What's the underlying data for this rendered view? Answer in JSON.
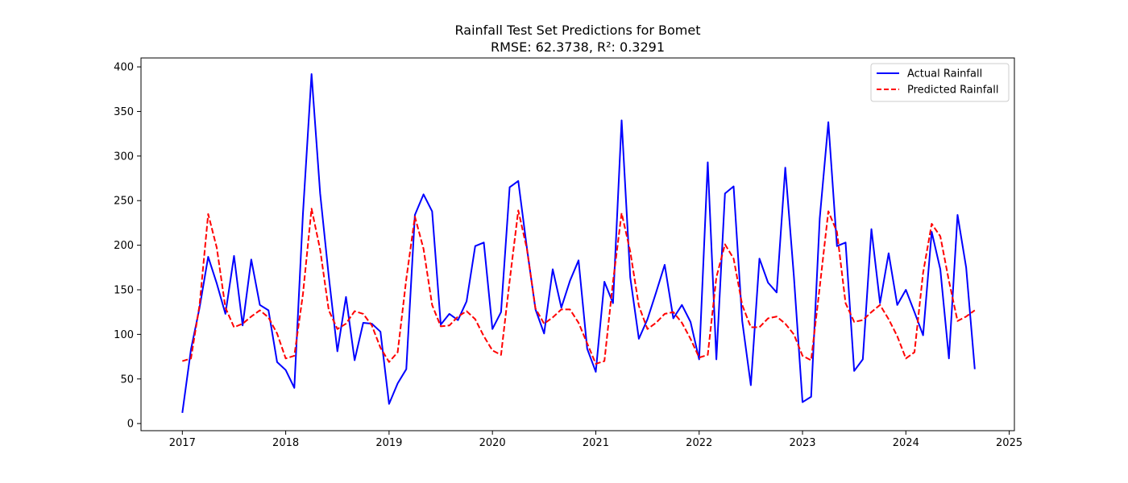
{
  "chart_data": {
    "type": "line",
    "title": "Rainfall Test Set Predictions for Bomet",
    "subtitle": "RMSE: 62.3738, R²: 0.3291",
    "xlabel": "",
    "ylabel": "",
    "x_range": [
      2016.6,
      2025.05
    ],
    "ylim": [
      -8,
      410
    ],
    "x_ticks": [
      2017,
      2018,
      2019,
      2020,
      2021,
      2022,
      2023,
      2024,
      2025
    ],
    "y_ticks": [
      0,
      50,
      100,
      150,
      200,
      250,
      300,
      350,
      400
    ],
    "grid": false,
    "legend_position": "top-right",
    "x": [
      "2017-01",
      "2017-02",
      "2017-03",
      "2017-04",
      "2017-05",
      "2017-06",
      "2017-07",
      "2017-08",
      "2017-09",
      "2017-10",
      "2017-11",
      "2017-12",
      "2018-01",
      "2018-02",
      "2018-03",
      "2018-04",
      "2018-05",
      "2018-06",
      "2018-07",
      "2018-08",
      "2018-09",
      "2018-10",
      "2018-11",
      "2018-12",
      "2019-01",
      "2019-02",
      "2019-03",
      "2019-04",
      "2019-05",
      "2019-06",
      "2019-07",
      "2019-08",
      "2019-09",
      "2019-10",
      "2019-11",
      "2019-12",
      "2020-01",
      "2020-02",
      "2020-03",
      "2020-04",
      "2020-05",
      "2020-06",
      "2020-07",
      "2020-08",
      "2020-09",
      "2020-10",
      "2020-11",
      "2020-12",
      "2021-01",
      "2021-02",
      "2021-03",
      "2021-04",
      "2021-05",
      "2021-06",
      "2021-07",
      "2021-08",
      "2021-09",
      "2021-10",
      "2021-11",
      "2021-12",
      "2022-01",
      "2022-02",
      "2022-03",
      "2022-04",
      "2022-05",
      "2022-06",
      "2022-07",
      "2022-08",
      "2022-09",
      "2022-10",
      "2022-11",
      "2022-12",
      "2023-01",
      "2023-02",
      "2023-03",
      "2023-04",
      "2023-05",
      "2023-06",
      "2023-07",
      "2023-08",
      "2023-09",
      "2023-10",
      "2023-11",
      "2023-12",
      "2024-01",
      "2024-02",
      "2024-03",
      "2024-04",
      "2024-05",
      "2024-06",
      "2024-07",
      "2024-08",
      "2024-09"
    ],
    "series": [
      {
        "name": "Actual Rainfall",
        "color": "#0000ff",
        "style": "solid",
        "values": [
          12,
          83,
          130,
          187,
          157,
          123,
          188,
          110,
          184,
          133,
          127,
          69,
          60,
          40,
          235,
          392,
          258,
          165,
          81,
          142,
          71,
          113,
          112,
          103,
          22,
          45,
          61,
          234,
          257,
          238,
          111,
          123,
          116,
          137,
          199,
          203,
          106,
          125,
          265,
          272,
          197,
          128,
          101,
          173,
          130,
          160,
          183,
          84,
          58,
          159,
          135,
          340,
          164,
          95,
          117,
          147,
          178,
          118,
          133,
          114,
          72,
          293,
          72,
          258,
          266,
          115,
          43,
          185,
          158,
          147,
          287,
          165,
          24,
          30,
          230,
          338,
          199,
          203,
          59,
          72,
          218,
          135,
          191,
          133,
          150,
          125,
          99,
          215,
          173,
          73,
          234,
          175,
          61
        ]
      },
      {
        "name": "Predicted Rainfall",
        "color": "#ff0000",
        "style": "dashed",
        "values": [
          70,
          73,
          133,
          235,
          197,
          130,
          108,
          112,
          120,
          127,
          119,
          101,
          73,
          76,
          145,
          241,
          195,
          127,
          106,
          112,
          126,
          123,
          110,
          85,
          69,
          80,
          162,
          232,
          196,
          133,
          109,
          110,
          120,
          126,
          117,
          98,
          82,
          77,
          160,
          239,
          196,
          129,
          112,
          119,
          128,
          128,
          113,
          90,
          67,
          70,
          159,
          236,
          193,
          132,
          106,
          113,
          123,
          125,
          113,
          95,
          74,
          77,
          164,
          201,
          185,
          133,
          108,
          108,
          118,
          120,
          112,
          100,
          76,
          71,
          153,
          238,
          215,
          135,
          114,
          116,
          125,
          133,
          117,
          98,
          73,
          80,
          169,
          224,
          210,
          160,
          115,
          120,
          127
        ]
      }
    ]
  }
}
